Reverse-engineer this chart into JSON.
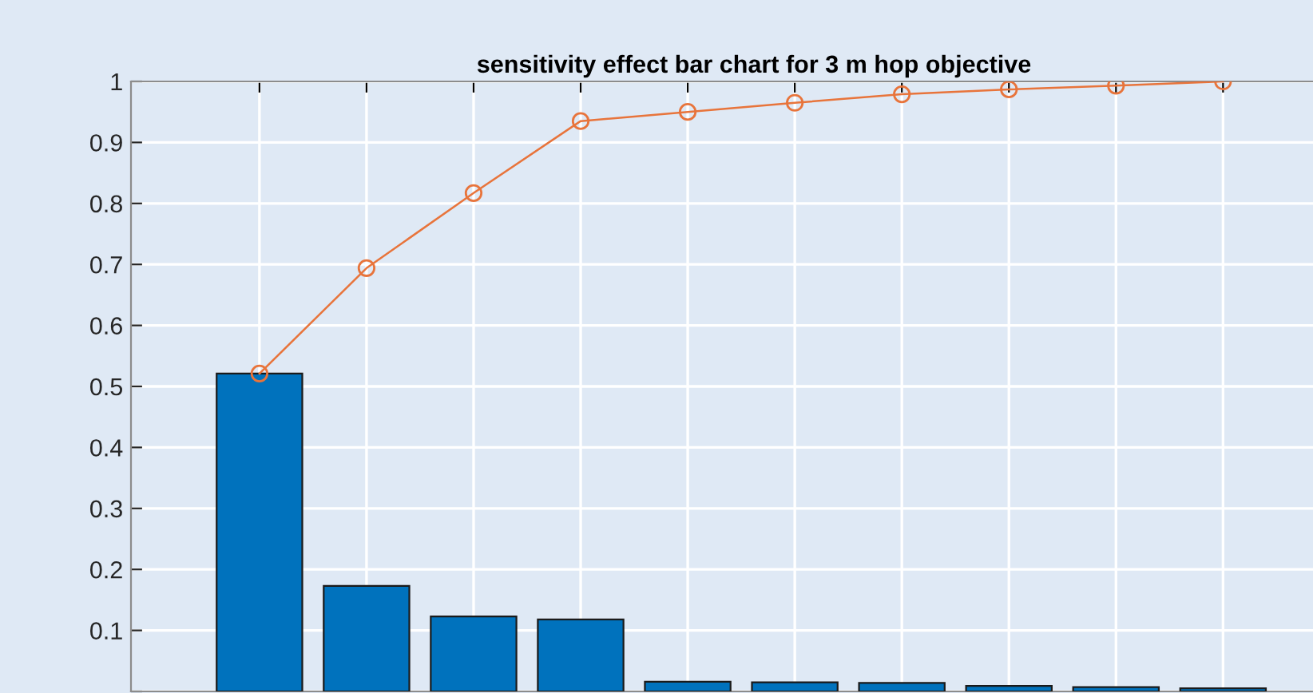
{
  "chart_data": {
    "type": "bar",
    "title": "sensitivity effect bar chart for 3 m hop objective",
    "categories": [
      null,
      null,
      null,
      null,
      null,
      null,
      null,
      null,
      null,
      null
    ],
    "series": [
      {
        "color": "#0072bd",
        "values": [
          0.521,
          0.173,
          0.123,
          0.118,
          0.016,
          0.015,
          0.014,
          0.009,
          0.007,
          0.005
        ]
      },
      {
        "type": "line",
        "color": "#e8743b",
        "values": [
          0.521,
          0.694,
          0.817,
          0.935,
          0.95,
          0.965,
          0.979,
          0.987,
          0.993,
          1.0
        ]
      }
    ],
    "ylim": [
      0,
      1
    ],
    "yticks": [
      {
        "value": 0,
        "label": null
      },
      0.1,
      0.2,
      0.3,
      0.4,
      0.5,
      0.6,
      0.7,
      0.8,
      0.9,
      1
    ],
    "grid": true,
    "marker": "circle",
    "line_style": "solid"
  }
}
